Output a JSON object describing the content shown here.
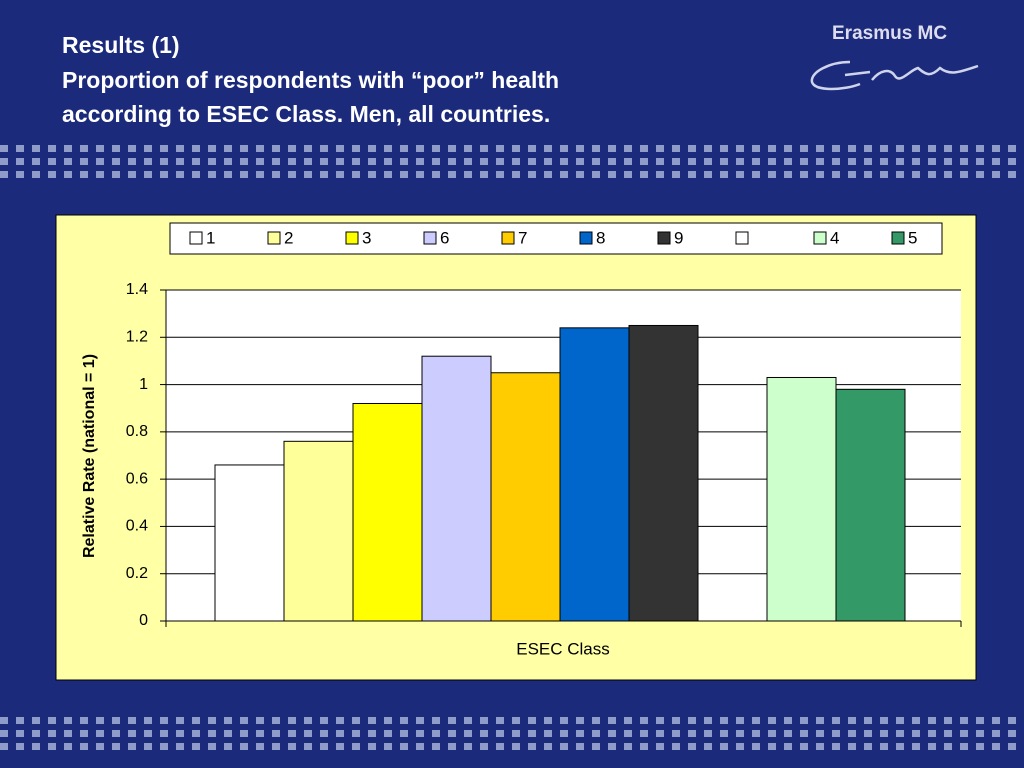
{
  "slide": {
    "title_lines": [
      "Results (1)",
      "Proportion of respondents with “poor” health",
      "according to ESEC Class.  Men, all countries."
    ],
    "logo": "Erasmus MC"
  },
  "chart_data": {
    "type": "bar",
    "x_label": "ESEC Class",
    "y_label": "Relative Rate (national = 1)",
    "series": [
      {
        "name": "1",
        "color": "#ffffff",
        "values": [
          0.66
        ]
      },
      {
        "name": "2",
        "color": "#ffff99",
        "values": [
          0.76
        ]
      },
      {
        "name": "3",
        "color": "#ffff00",
        "values": [
          0.92
        ]
      },
      {
        "name": "6",
        "color": "#ccccff",
        "values": [
          1.12
        ]
      },
      {
        "name": "7",
        "color": "#ffcc00",
        "values": [
          1.05
        ]
      },
      {
        "name": "8",
        "color": "#0066cc",
        "values": [
          1.24
        ]
      },
      {
        "name": "9",
        "color": "#333333",
        "values": [
          1.25
        ]
      },
      {
        "name": null,
        "color": "#ffffff",
        "values": [
          null
        ]
      },
      {
        "name": "4",
        "color": "#ccffcc",
        "values": [
          1.03
        ]
      },
      {
        "name": "5",
        "color": "#339966",
        "values": [
          0.98
        ]
      }
    ],
    "ylim": [
      0,
      1.4
    ],
    "yticks": [
      0,
      0.2,
      0.4,
      0.6,
      0.8,
      1,
      1.2,
      1.4
    ],
    "grid": true,
    "legend": "top"
  }
}
